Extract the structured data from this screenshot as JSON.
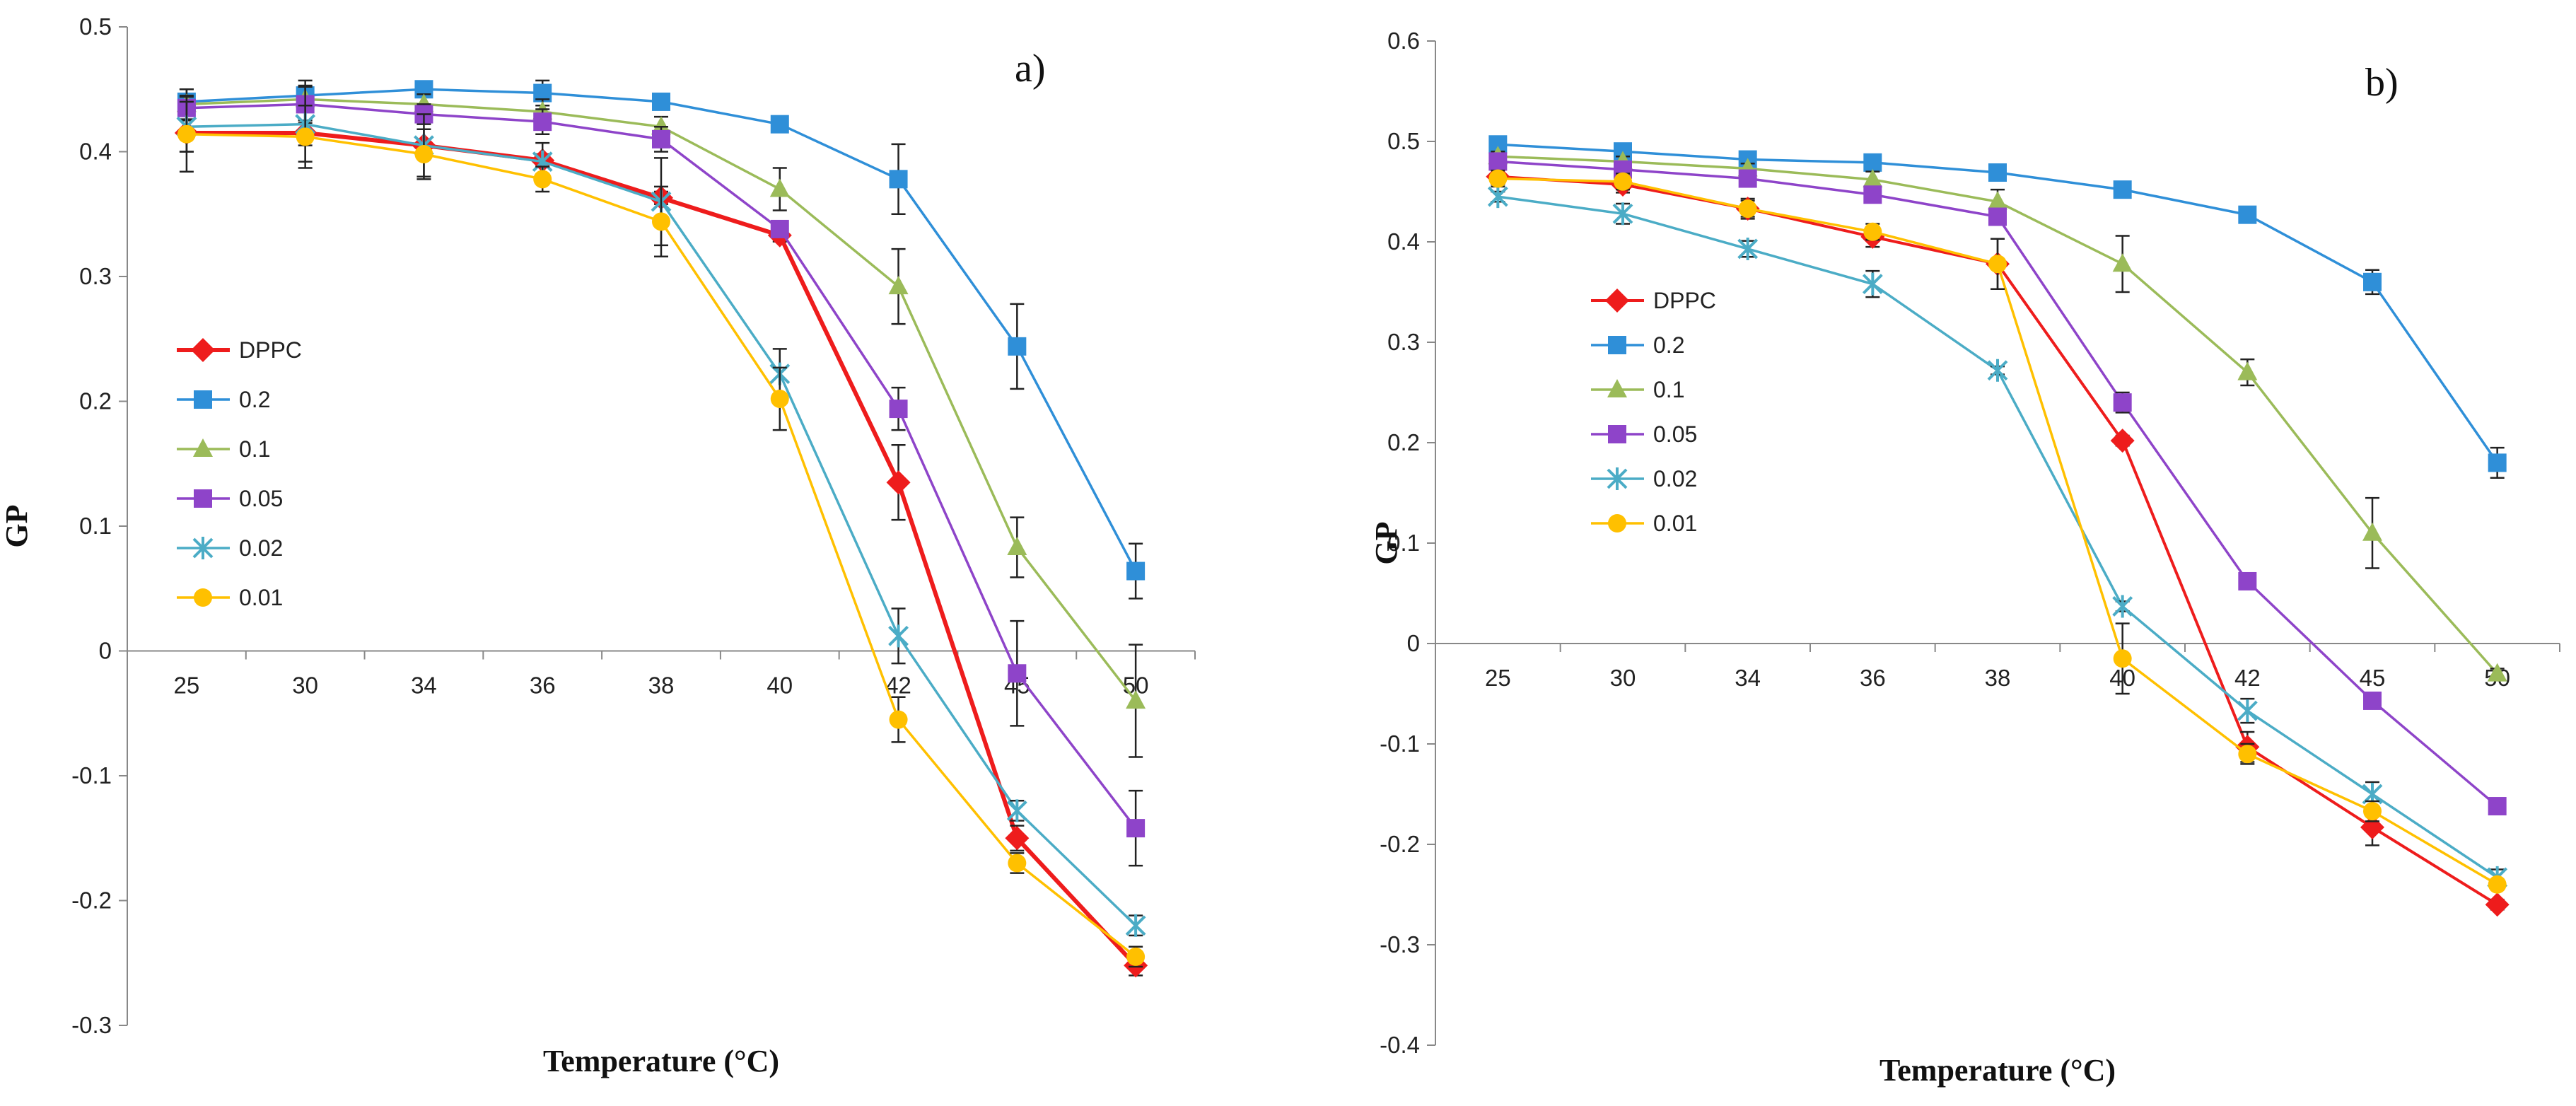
{
  "chart_data": [
    {
      "type": "line",
      "panel_label": "a)",
      "xlabel": "Temperature (°C)",
      "ylabel": "GP",
      "categories": [
        "25",
        "30",
        "34",
        "36",
        "38",
        "40",
        "42",
        "45",
        "50"
      ],
      "ylim": [
        -0.3,
        0.5
      ],
      "yticks": [
        "-0.3",
        "-0.2",
        "-0.1",
        "0",
        "0.1",
        "0.2",
        "0.3",
        "0.4",
        "0.5"
      ],
      "grid": false,
      "legend_position": "left",
      "series": [
        {
          "name": "DPPC",
          "color": "#ee1c1c",
          "marker": "diamond",
          "values": [
            0.415,
            0.415,
            0.405,
            0.393,
            0.363,
            0.333,
            0.135,
            -0.15,
            -0.252
          ],
          "errors": [
            0.015,
            0.01,
            0.005,
            0.005,
            0.005,
            0.005,
            0.03,
            0.01,
            0.008
          ]
        },
        {
          "name": "0.2",
          "color": "#2f8fd8",
          "marker": "square",
          "values": [
            0.44,
            0.445,
            0.45,
            0.447,
            0.44,
            0.422,
            0.378,
            0.244,
            0.064
          ],
          "errors": [
            0.01,
            0.012,
            0.005,
            0.01,
            0.005,
            0.005,
            0.028,
            0.034,
            0.022
          ]
        },
        {
          "name": "0.1",
          "color": "#9bbb59",
          "marker": "triangle",
          "values": [
            0.438,
            0.442,
            0.438,
            0.432,
            0.42,
            0.37,
            0.292,
            0.083,
            -0.04
          ],
          "errors": [
            0.012,
            0.01,
            0.008,
            0.01,
            0.008,
            0.017,
            0.03,
            0.024,
            0.045
          ]
        },
        {
          "name": "0.05",
          "color": "#8e44c9",
          "marker": "square",
          "values": [
            0.435,
            0.438,
            0.43,
            0.424,
            0.41,
            0.338,
            0.194,
            -0.018,
            -0.142
          ],
          "errors": [
            0.01,
            0.015,
            0.008,
            0.01,
            0.01,
            0.005,
            0.017,
            0.042,
            0.03
          ]
        },
        {
          "name": "0.02",
          "color": "#4bacc6",
          "marker": "asterisk",
          "values": [
            0.42,
            0.422,
            0.405,
            0.392,
            0.36,
            0.222,
            0.012,
            -0.128,
            -0.22
          ],
          "errors": [
            0.02,
            0.03,
            0.025,
            0.015,
            0.035,
            0.02,
            0.022,
            0.008,
            0.008
          ]
        },
        {
          "name": "0.01",
          "color": "#ffc000",
          "marker": "circle",
          "values": [
            0.414,
            0.412,
            0.398,
            0.378,
            0.344,
            0.202,
            -0.055,
            -0.17,
            -0.245
          ],
          "errors": [
            0.03,
            0.025,
            0.02,
            0.01,
            0.028,
            0.025,
            0.018,
            0.008,
            0.008
          ]
        }
      ]
    },
    {
      "type": "line",
      "panel_label": "b)",
      "xlabel": "Temperature  (°C)",
      "ylabel": "GP",
      "categories": [
        "25",
        "30",
        "34",
        "36",
        "38",
        "40",
        "42",
        "45",
        "50"
      ],
      "ylim": [
        -0.4,
        0.6
      ],
      "yticks": [
        "-0.4",
        "-0.3",
        "-0.2",
        "-0.1",
        "0",
        "0.1",
        "0.2",
        "0.3",
        "0.4",
        "0.5",
        "0.6"
      ],
      "grid": false,
      "legend_position": "left",
      "series": [
        {
          "name": "DPPC",
          "color": "#ee1c1c",
          "marker": "diamond",
          "values": [
            0.465,
            0.457,
            0.433,
            0.405,
            0.378,
            0.202,
            -0.103,
            -0.183,
            -0.26
          ],
          "errors": [
            0.008,
            0.008,
            0.01,
            0.01,
            0.025,
            0.005,
            0.015,
            0.018,
            0.005
          ]
        },
        {
          "name": "0.2",
          "color": "#2f8fd8",
          "marker": "square",
          "values": [
            0.497,
            0.49,
            0.482,
            0.479,
            0.469,
            0.452,
            0.427,
            0.36,
            0.18
          ],
          "errors": [
            0.005,
            0.005,
            0.005,
            0.008,
            0.004,
            0.004,
            0.004,
            0.012,
            0.015
          ]
        },
        {
          "name": "0.1",
          "color": "#9bbb59",
          "marker": "triangle",
          "values": [
            0.485,
            0.48,
            0.473,
            0.462,
            0.44,
            0.378,
            0.27,
            0.11,
            -0.03
          ],
          "errors": [
            0.005,
            0.005,
            0.005,
            0.008,
            0.012,
            0.028,
            0.013,
            0.035,
            0.005
          ]
        },
        {
          "name": "0.05",
          "color": "#8e44c9",
          "marker": "square",
          "values": [
            0.48,
            0.472,
            0.463,
            0.447,
            0.425,
            0.24,
            0.062,
            -0.057,
            -0.162
          ],
          "errors": [
            0.005,
            0.005,
            0.005,
            0.008,
            0.005,
            0.01,
            0.003,
            0.003,
            0.004
          ]
        },
        {
          "name": "0.02",
          "color": "#4bacc6",
          "marker": "asterisk",
          "values": [
            0.445,
            0.428,
            0.393,
            0.358,
            0.272,
            0.037,
            -0.067,
            -0.15,
            -0.233
          ],
          "errors": [
            0.005,
            0.01,
            0.008,
            0.013,
            0.004,
            0.005,
            0.012,
            0.012,
            0.008
          ]
        },
        {
          "name": "0.01",
          "color": "#ffc000",
          "marker": "circle",
          "values": [
            0.463,
            0.46,
            0.433,
            0.41,
            0.378,
            -0.015,
            -0.11,
            -0.167,
            -0.24
          ],
          "errors": [
            0.008,
            0.008,
            0.008,
            0.008,
            0.025,
            0.035,
            0.01,
            0.01,
            0.005
          ]
        }
      ]
    }
  ]
}
